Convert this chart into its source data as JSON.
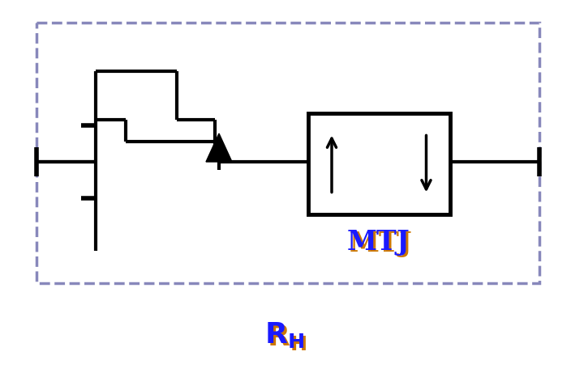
{
  "fig_width": 7.04,
  "fig_height": 4.66,
  "dpi": 100,
  "bg_color": "#ffffff",
  "line_color": "#000000",
  "line_lw": 3.0,
  "dash_color": "#8888bb",
  "dash_lw": 2.5,
  "label_color1": "#1a1aff",
  "label_color2": "#cc7700",
  "label_fontsize": 24,
  "mtj_label": "MTJ",
  "rh_label": "R_H"
}
